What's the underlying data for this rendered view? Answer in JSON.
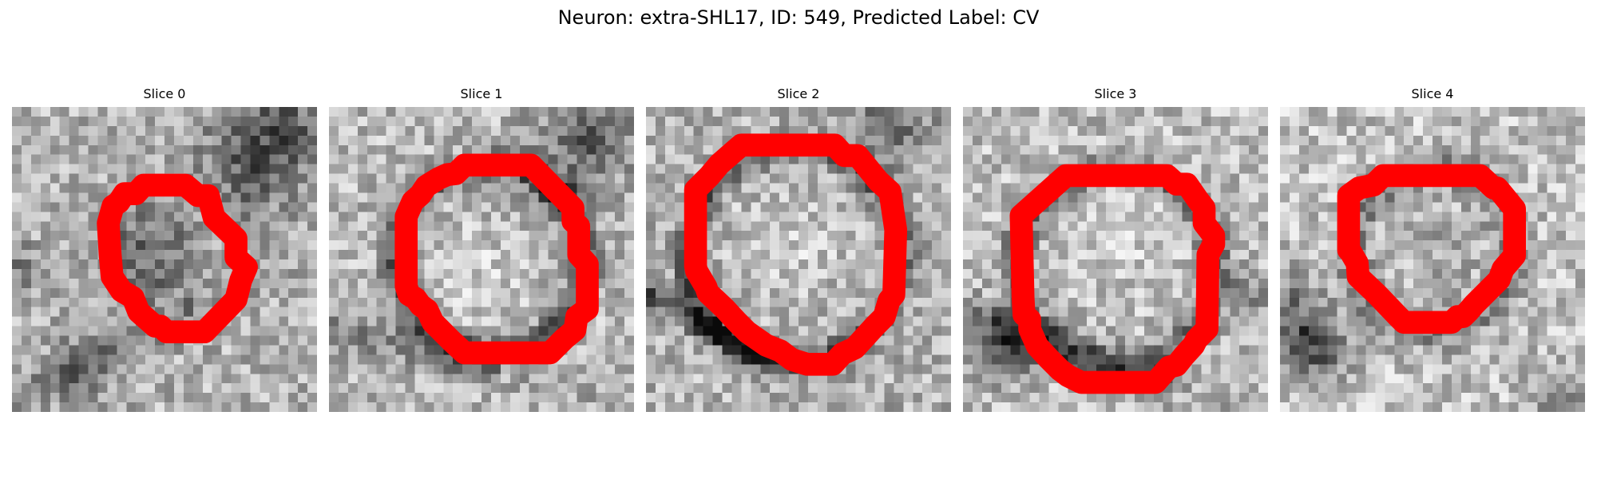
{
  "suptitle": "Neuron: extra-SHL17, ID: 549, Predicted Label: CV",
  "colors": {
    "background": "#ffffff",
    "contour": "#ff0000",
    "image_colormap": "grayscale"
  },
  "panels": [
    {
      "title": "Slice 0"
    },
    {
      "title": "Slice 1"
    },
    {
      "title": "Slice 2"
    },
    {
      "title": "Slice 3"
    },
    {
      "title": "Slice 4"
    }
  ]
}
